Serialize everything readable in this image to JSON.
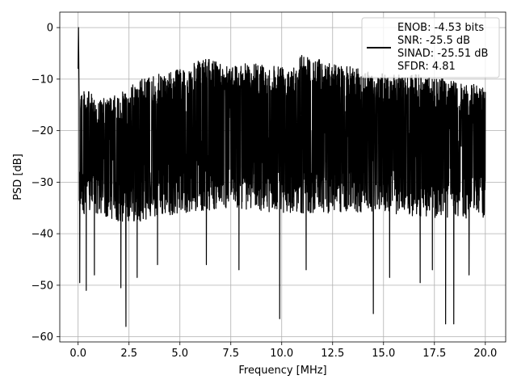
{
  "chart_data": {
    "type": "line",
    "xlabel": "Frequency [MHz]",
    "ylabel": "PSD [dB]",
    "xlim": [
      -0.9,
      21.0
    ],
    "ylim": [
      -61,
      3
    ],
    "x_ticks": [
      0.0,
      2.5,
      5.0,
      7.5,
      10.0,
      12.5,
      15.0,
      17.5,
      20.0
    ],
    "x_tick_labels": [
      "0.0",
      "2.5",
      "5.0",
      "7.5",
      "10.0",
      "12.5",
      "15.0",
      "17.5",
      "20.0"
    ],
    "y_ticks": [
      0,
      -10,
      -20,
      -30,
      -40,
      -50,
      -60
    ],
    "y_tick_labels": [
      "0",
      "−10",
      "−20",
      "−30",
      "−40",
      "−50",
      "−60"
    ],
    "grid": true,
    "legend": {
      "placement": "top-right",
      "entries": [
        "ENOB: -4.53 bits",
        "SNR: -25.5 dB",
        "SINAD: -25.51 dB",
        "SFDR: 4.81"
      ]
    },
    "series": [
      {
        "color": "#000000",
        "x_range": [
          0.0,
          20.0
        ],
        "peak": {
          "x": 0.02,
          "y": 0
        },
        "ceiling_points": [
          {
            "x": 0.1,
            "y": -11
          },
          {
            "x": 1.0,
            "y": -14
          },
          {
            "x": 2.0,
            "y": -13
          },
          {
            "x": 3.0,
            "y": -10
          },
          {
            "x": 4.0,
            "y": -9
          },
          {
            "x": 5.0,
            "y": -8
          },
          {
            "x": 6.2,
            "y": -6
          },
          {
            "x": 7.5,
            "y": -7
          },
          {
            "x": 9.0,
            "y": -7
          },
          {
            "x": 10.5,
            "y": -7
          },
          {
            "x": 11.0,
            "y": -5
          },
          {
            "x": 12.5,
            "y": -7
          },
          {
            "x": 14.0,
            "y": -8
          },
          {
            "x": 15.0,
            "y": -9
          },
          {
            "x": 16.5,
            "y": -9
          },
          {
            "x": 18.0,
            "y": -10
          },
          {
            "x": 19.0,
            "y": -11
          },
          {
            "x": 20.0,
            "y": -11
          }
        ],
        "noise_floor_points": [
          {
            "x": 0.1,
            "y": -36
          },
          {
            "x": 2.5,
            "y": -38
          },
          {
            "x": 5.0,
            "y": -36
          },
          {
            "x": 7.5,
            "y": -35
          },
          {
            "x": 10.0,
            "y": -36
          },
          {
            "x": 12.5,
            "y": -36
          },
          {
            "x": 15.0,
            "y": -36
          },
          {
            "x": 17.5,
            "y": -37
          },
          {
            "x": 20.0,
            "y": -37
          }
        ],
        "deep_dips": [
          {
            "x": 0.08,
            "y": -49.5
          },
          {
            "x": 0.4,
            "y": -51
          },
          {
            "x": 0.8,
            "y": -48
          },
          {
            "x": 2.1,
            "y": -50.5
          },
          {
            "x": 2.35,
            "y": -58
          },
          {
            "x": 2.9,
            "y": -48.5
          },
          {
            "x": 3.9,
            "y": -46
          },
          {
            "x": 6.3,
            "y": -46
          },
          {
            "x": 7.9,
            "y": -47
          },
          {
            "x": 9.9,
            "y": -56.5
          },
          {
            "x": 11.2,
            "y": -47
          },
          {
            "x": 14.5,
            "y": -55.5
          },
          {
            "x": 15.3,
            "y": -48.5
          },
          {
            "x": 16.8,
            "y": -49.5
          },
          {
            "x": 17.4,
            "y": -47
          },
          {
            "x": 18.05,
            "y": -57.5
          },
          {
            "x": 18.45,
            "y": -57.5
          },
          {
            "x": 19.2,
            "y": -48
          }
        ]
      }
    ]
  }
}
